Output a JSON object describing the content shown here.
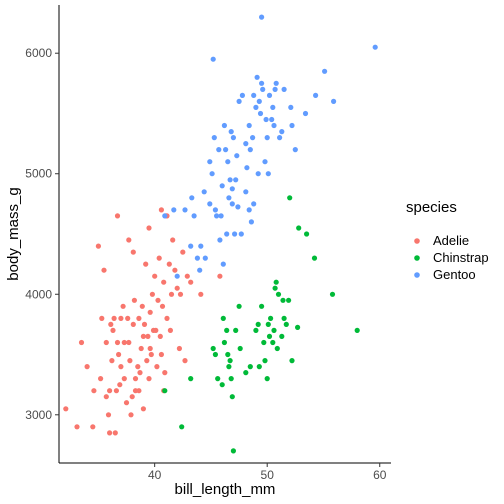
{
  "chart_data": {
    "type": "scatter",
    "xlabel": "bill_length_mm",
    "ylabel": "body_mass_g",
    "xlim": [
      31.5,
      61
    ],
    "ylim": [
      2600,
      6400
    ],
    "x_ticks": [
      40,
      50,
      60
    ],
    "y_ticks": [
      3000,
      4000,
      5000,
      6000
    ],
    "grid": false,
    "legend": {
      "title": "species",
      "placement": "right"
    },
    "series": [
      {
        "name": "Adelie",
        "color": "#F8766D",
        "points": [
          [
            32.1,
            3050
          ],
          [
            33.1,
            2900
          ],
          [
            33.5,
            3600
          ],
          [
            34.0,
            3400
          ],
          [
            34.5,
            2900
          ],
          [
            34.6,
            3200
          ],
          [
            35.0,
            4400
          ],
          [
            35.2,
            3300
          ],
          [
            35.5,
            4200
          ],
          [
            35.7,
            3600
          ],
          [
            35.9,
            3000
          ],
          [
            36.0,
            3200
          ],
          [
            36.0,
            2850
          ],
          [
            36.2,
            3450
          ],
          [
            36.3,
            3700
          ],
          [
            36.4,
            3800
          ],
          [
            36.5,
            2850
          ],
          [
            36.6,
            3200
          ],
          [
            36.7,
            3600
          ],
          [
            36.8,
            3500
          ],
          [
            36.9,
            3250
          ],
          [
            37.0,
            3400
          ],
          [
            37.2,
            3900
          ],
          [
            37.3,
            3300
          ],
          [
            37.5,
            3100
          ],
          [
            37.6,
            3800
          ],
          [
            37.7,
            3600
          ],
          [
            37.8,
            3450
          ],
          [
            37.9,
            3000
          ],
          [
            38.0,
            3150
          ],
          [
            38.1,
            3750
          ],
          [
            38.2,
            3950
          ],
          [
            38.3,
            3300
          ],
          [
            38.5,
            3400
          ],
          [
            38.6,
            3800
          ],
          [
            38.7,
            3350
          ],
          [
            38.8,
            3550
          ],
          [
            38.9,
            3900
          ],
          [
            39.0,
            3650
          ],
          [
            39.1,
            3750
          ],
          [
            39.2,
            4250
          ],
          [
            39.3,
            3450
          ],
          [
            39.4,
            3650
          ],
          [
            39.5,
            3300
          ],
          [
            39.6,
            3850
          ],
          [
            39.7,
            3500
          ],
          [
            39.8,
            4000
          ],
          [
            39.9,
            3700
          ],
          [
            40.0,
            4150
          ],
          [
            40.1,
            3700
          ],
          [
            40.2,
            3400
          ],
          [
            40.3,
            3950
          ],
          [
            40.4,
            4300
          ],
          [
            40.5,
            3650
          ],
          [
            40.6,
            3500
          ],
          [
            40.7,
            3900
          ],
          [
            40.8,
            4100
          ],
          [
            40.9,
            3350
          ],
          [
            41.0,
            4650
          ],
          [
            41.1,
            3800
          ],
          [
            41.3,
            4250
          ],
          [
            41.4,
            3700
          ],
          [
            41.5,
            4000
          ],
          [
            41.6,
            4450
          ],
          [
            41.8,
            4200
          ],
          [
            42.0,
            4050
          ],
          [
            42.2,
            3550
          ],
          [
            42.3,
            4000
          ],
          [
            42.5,
            4350
          ],
          [
            42.7,
            3450
          ],
          [
            42.9,
            4150
          ],
          [
            43.2,
            4100
          ],
          [
            44.1,
            4000
          ],
          [
            45.8,
            4150
          ],
          [
            40.6,
            4700
          ],
          [
            41.1,
            4650
          ],
          [
            38.1,
            4350
          ],
          [
            37.7,
            4450
          ],
          [
            39.5,
            4550
          ],
          [
            36.7,
            4650
          ],
          [
            35.3,
            3800
          ],
          [
            36.1,
            3750
          ],
          [
            37.0,
            3800
          ],
          [
            37.3,
            3600
          ],
          [
            38.6,
            3200
          ],
          [
            39.0,
            3050
          ],
          [
            39.6,
            3550
          ],
          [
            40.8,
            3200
          ],
          [
            38.3,
            3200
          ],
          [
            35.7,
            3150
          ]
        ]
      },
      {
        "name": "Chinstrap",
        "color": "#00BA38",
        "points": [
          [
            40.9,
            3200
          ],
          [
            42.4,
            2900
          ],
          [
            43.2,
            3300
          ],
          [
            45.2,
            3550
          ],
          [
            45.4,
            3500
          ],
          [
            45.6,
            3300
          ],
          [
            46.0,
            3250
          ],
          [
            46.1,
            3800
          ],
          [
            46.2,
            3600
          ],
          [
            46.4,
            3700
          ],
          [
            46.5,
            3500
          ],
          [
            46.6,
            3400
          ],
          [
            46.7,
            3450
          ],
          [
            46.8,
            3300
          ],
          [
            46.9,
            3150
          ],
          [
            47.0,
            2700
          ],
          [
            47.2,
            3700
          ],
          [
            47.5,
            3900
          ],
          [
            47.6,
            3550
          ],
          [
            48.1,
            3350
          ],
          [
            48.5,
            3400
          ],
          [
            49.0,
            3700
          ],
          [
            49.2,
            3750
          ],
          [
            49.5,
            3900
          ],
          [
            49.7,
            3600
          ],
          [
            49.8,
            3450
          ],
          [
            50.0,
            3300
          ],
          [
            50.1,
            3750
          ],
          [
            50.2,
            3650
          ],
          [
            50.3,
            3800
          ],
          [
            50.5,
            3600
          ],
          [
            50.6,
            3700
          ],
          [
            50.8,
            4100
          ],
          [
            50.9,
            3550
          ],
          [
            51.0,
            4000
          ],
          [
            51.3,
            3650
          ],
          [
            51.4,
            3950
          ],
          [
            51.5,
            3800
          ],
          [
            51.7,
            3750
          ],
          [
            51.9,
            3950
          ],
          [
            52.0,
            4800
          ],
          [
            52.2,
            3450
          ],
          [
            52.7,
            3725
          ],
          [
            52.8,
            4550
          ],
          [
            53.5,
            4500
          ],
          [
            54.2,
            4300
          ],
          [
            55.8,
            4000
          ],
          [
            58.0,
            3700
          ],
          [
            50.7,
            4050
          ],
          [
            49.3,
            3400
          ]
        ]
      },
      {
        "name": "Gentoo",
        "color": "#619CFF",
        "points": [
          [
            40.9,
            4650
          ],
          [
            41.7,
            4700
          ],
          [
            42.0,
            4150
          ],
          [
            42.7,
            4700
          ],
          [
            43.2,
            4400
          ],
          [
            43.3,
            4800
          ],
          [
            43.5,
            4650
          ],
          [
            43.8,
            4300
          ],
          [
            44.0,
            4200
          ],
          [
            44.4,
            4850
          ],
          [
            44.5,
            4300
          ],
          [
            44.9,
            4750
          ],
          [
            45.1,
            5000
          ],
          [
            45.2,
            5950
          ],
          [
            45.3,
            5300
          ],
          [
            45.5,
            4650
          ],
          [
            45.7,
            5200
          ],
          [
            45.8,
            4450
          ],
          [
            46.0,
            4900
          ],
          [
            46.1,
            4250
          ],
          [
            46.2,
            5400
          ],
          [
            46.4,
            4500
          ],
          [
            46.5,
            5100
          ],
          [
            46.6,
            4800
          ],
          [
            46.8,
            5350
          ],
          [
            46.9,
            4875
          ],
          [
            47.2,
            4950
          ],
          [
            47.3,
            5150
          ],
          [
            47.4,
            4725
          ],
          [
            47.5,
            5600
          ],
          [
            47.7,
            4500
          ],
          [
            47.8,
            5650
          ],
          [
            48.1,
            4850
          ],
          [
            48.2,
            5050
          ],
          [
            48.4,
            5400
          ],
          [
            48.5,
            5200
          ],
          [
            48.6,
            4600
          ],
          [
            48.7,
            5300
          ],
          [
            48.8,
            4750
          ],
          [
            49.0,
            5550
          ],
          [
            49.1,
            5800
          ],
          [
            49.2,
            5000
          ],
          [
            49.3,
            5600
          ],
          [
            49.4,
            5500
          ],
          [
            49.5,
            5750
          ],
          [
            49.6,
            5700
          ],
          [
            49.8,
            5100
          ],
          [
            50.0,
            5300
          ],
          [
            50.1,
            5000
          ],
          [
            50.2,
            5650
          ],
          [
            50.4,
            5450
          ],
          [
            50.5,
            5550
          ],
          [
            50.7,
            5700
          ],
          [
            50.8,
            5750
          ],
          [
            51.1,
            5300
          ],
          [
            51.3,
            5350
          ],
          [
            51.5,
            5700
          ],
          [
            52.1,
            5550
          ],
          [
            52.2,
            5400
          ],
          [
            52.5,
            5200
          ],
          [
            53.4,
            5500
          ],
          [
            54.3,
            5650
          ],
          [
            55.1,
            5850
          ],
          [
            55.9,
            5600
          ],
          [
            59.6,
            6050
          ],
          [
            49.5,
            6300
          ],
          [
            48.8,
            5650
          ],
          [
            46.9,
            4750
          ],
          [
            45.4,
            4700
          ],
          [
            44.9,
            5100
          ],
          [
            46.3,
            5200
          ],
          [
            47.1,
            4500
          ],
          [
            45.9,
            4650
          ],
          [
            44.1,
            4400
          ],
          [
            48.4,
            4700
          ],
          [
            49.9,
            5450
          ],
          [
            50.6,
            5400
          ],
          [
            47.0,
            5300
          ],
          [
            46.7,
            4950
          ],
          [
            48.1,
            5250
          ]
        ]
      }
    ]
  }
}
